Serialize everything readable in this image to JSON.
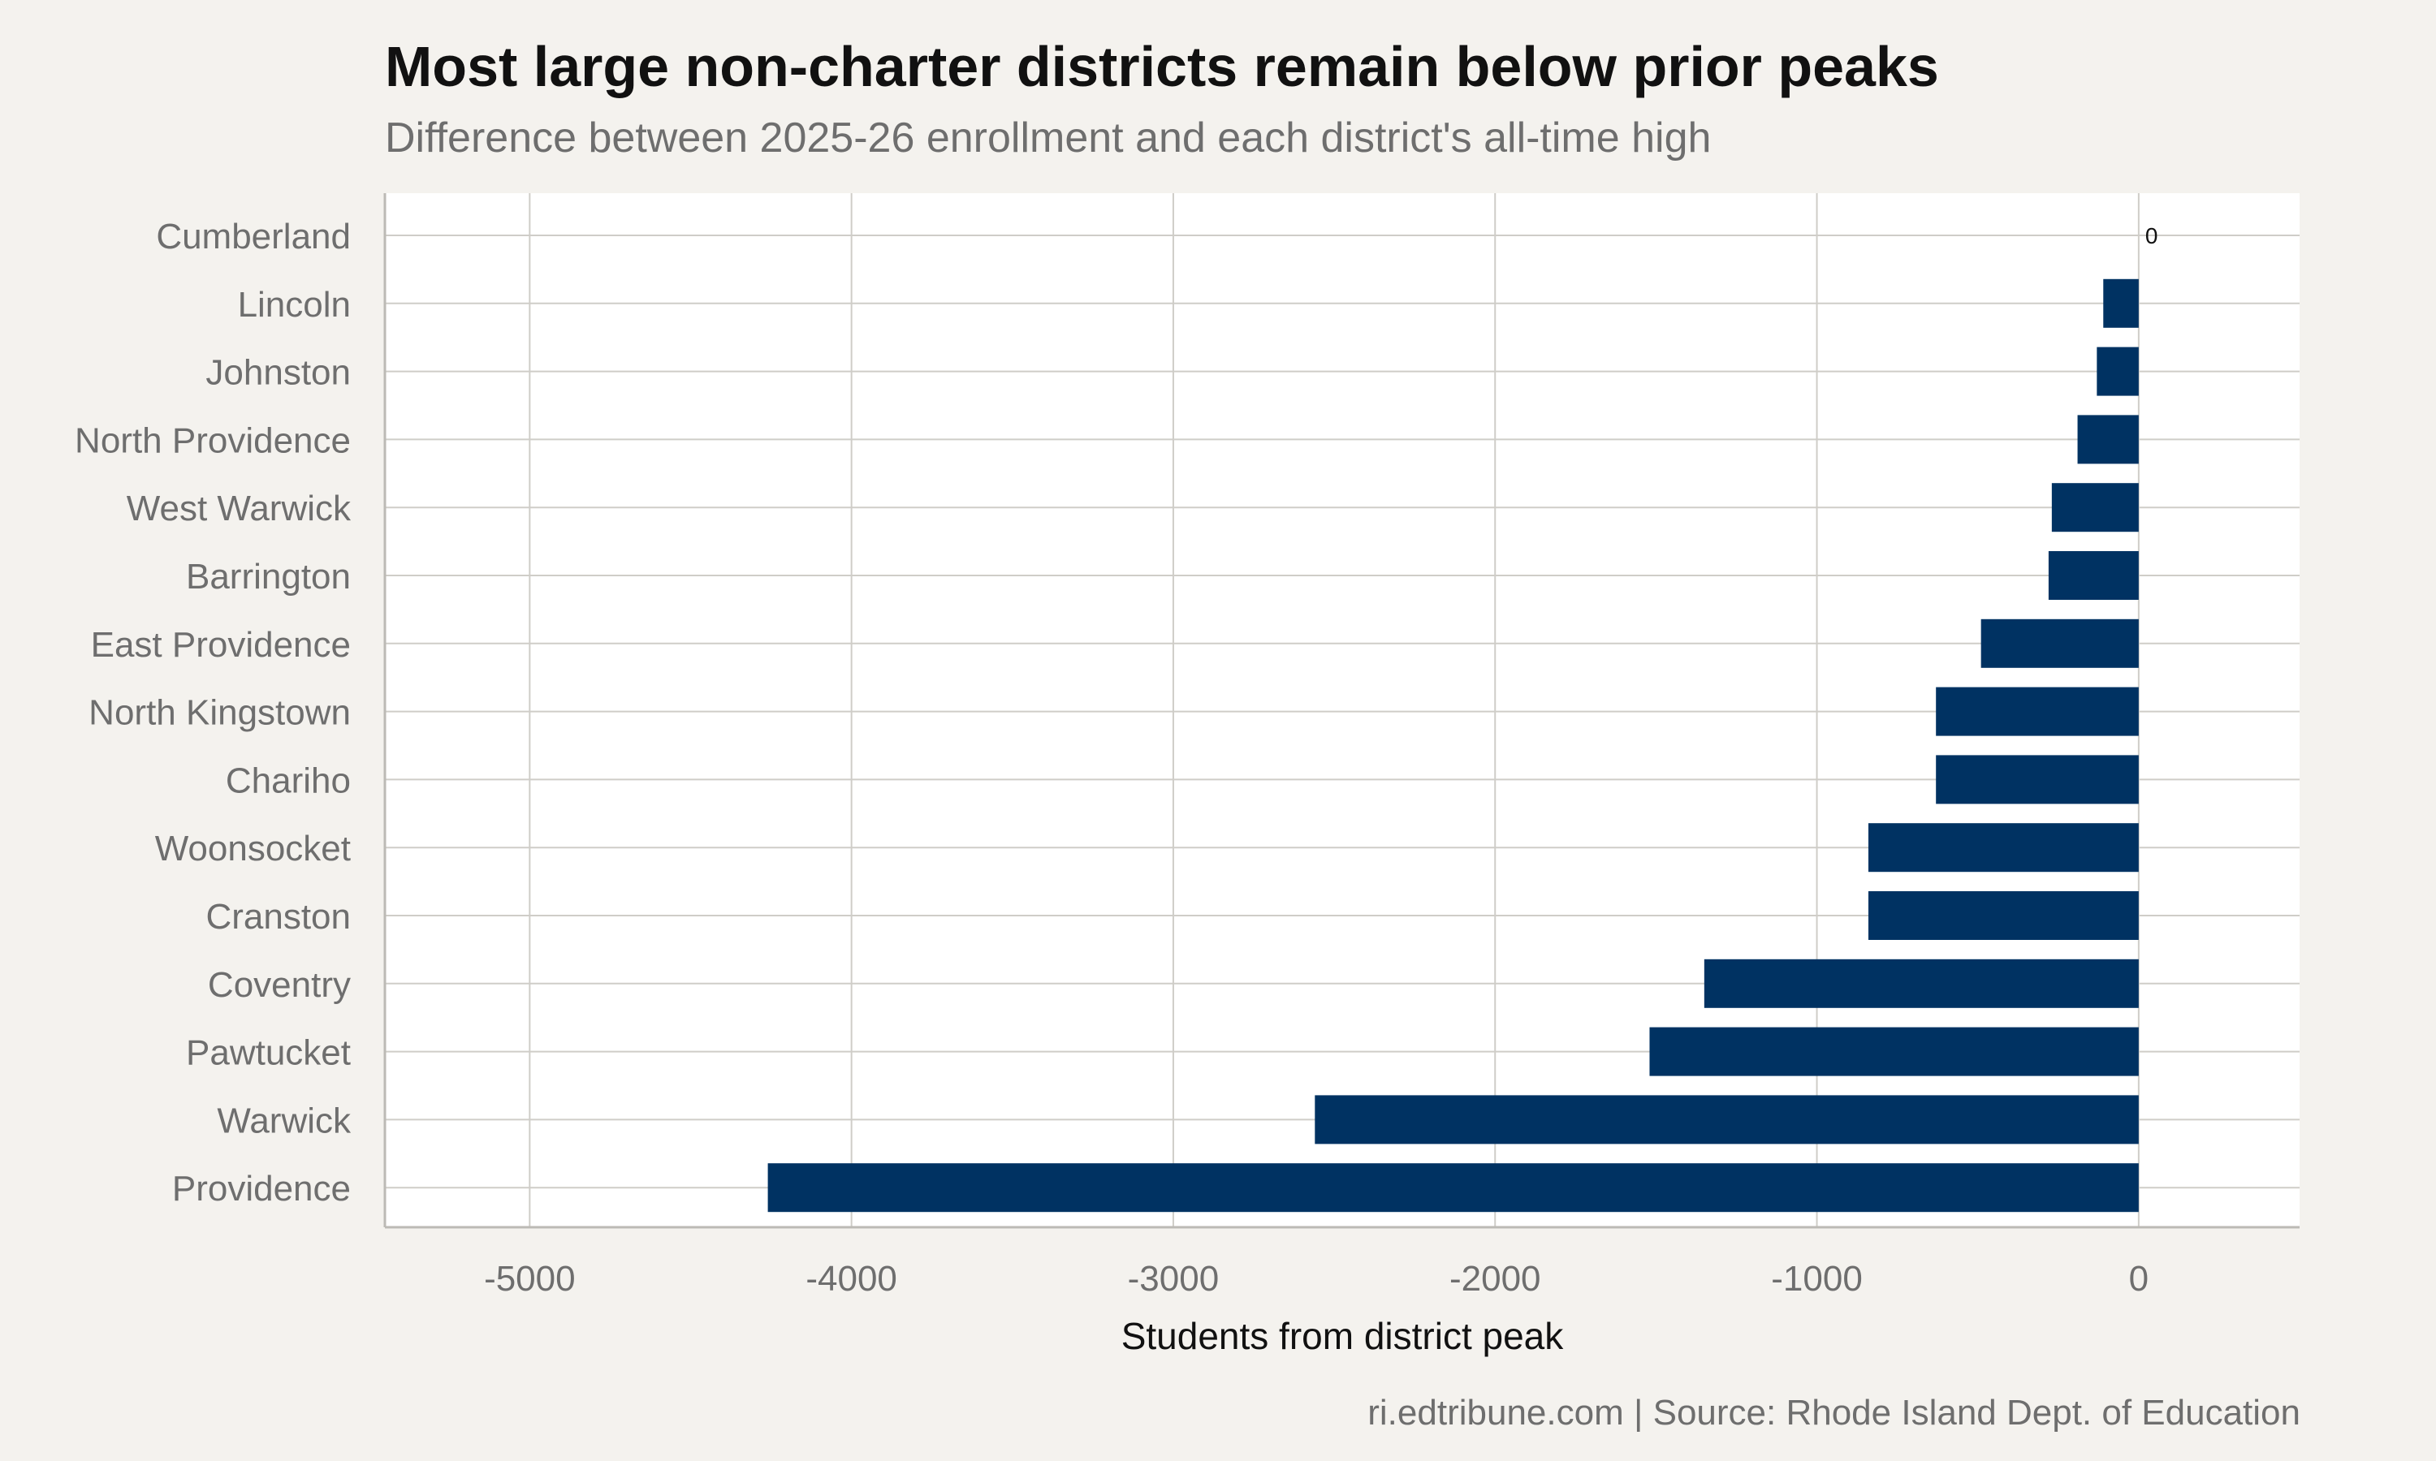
{
  "title": "Most large non-charter districts remain below prior peaks",
  "subtitle": "Difference between 2025-26 enrollment and each district's all-time high",
  "caption": "ri.edtribune.com | Source: Rhode Island Dept. of Education",
  "colors": {
    "bar": "#003262",
    "panel": "#ffffff",
    "background": "#f4f2ee",
    "grid": "#cfcdc8",
    "axis_text": "#6e6e6e",
    "label_text": "#111111"
  },
  "chart_data": {
    "type": "bar",
    "orientation": "horizontal",
    "title": "Most large non-charter districts remain below prior peaks",
    "subtitle": "Difference between 2025-26 enrollment and each district's all-time high",
    "xlabel": "Students from district peak",
    "ylabel": "",
    "xlim": [
      -5450,
      500
    ],
    "xticks": [
      -5000,
      -4000,
      -3000,
      -2000,
      -1000,
      0
    ],
    "xtick_labels": [
      "-5000",
      "-4000",
      "-3000",
      "-2000",
      "-1000",
      "0"
    ],
    "grid": true,
    "categories": [
      "Cumberland",
      "Lincoln",
      "Johnston",
      "North Providence",
      "West Warwick",
      "Barrington",
      "East Providence",
      "North Kingstown",
      "Chariho",
      "Woonsocket",
      "Cranston",
      "Coventry",
      "Pawtucket",
      "Warwick",
      "Providence"
    ],
    "values": [
      0,
      -110,
      -130,
      -190,
      -270,
      -280,
      -490,
      -630,
      -630,
      -840,
      -840,
      -1350,
      -1520,
      -2560,
      -4260
    ],
    "data_labels": [
      "0",
      "",
      "",
      "",
      "",
      "",
      "",
      "",
      "",
      "",
      "",
      "",
      "",
      "",
      ""
    ]
  }
}
